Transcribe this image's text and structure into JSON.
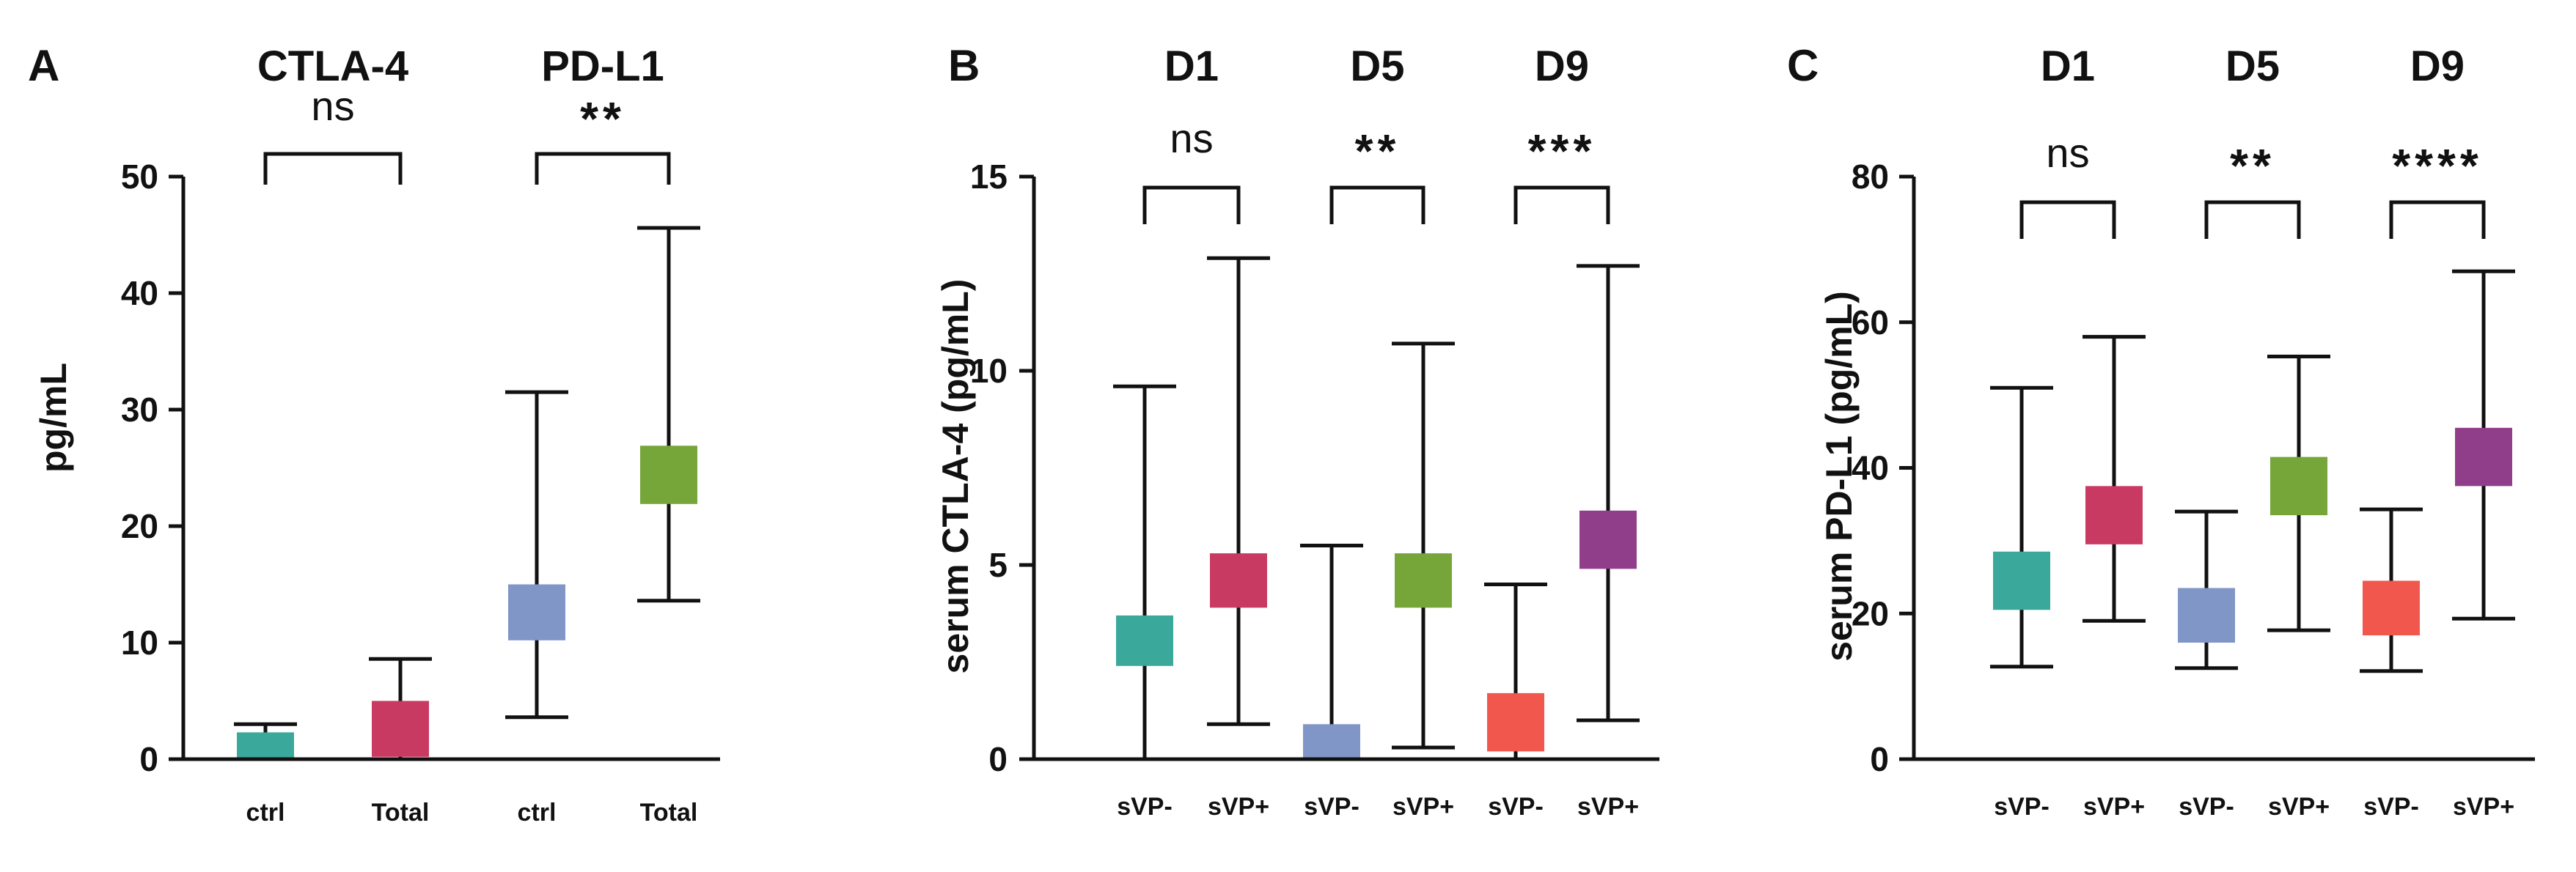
{
  "chart_data": [
    {
      "panel": "A",
      "type": "box",
      "ylabel": "pg/mL",
      "ylim": [
        0,
        50
      ],
      "yticks": [
        0,
        10,
        20,
        30,
        40,
        50
      ],
      "groups": [
        {
          "label": "CTLA-4",
          "significance": "ns",
          "items": [
            0,
            1
          ]
        },
        {
          "label": "PD-L1",
          "significance": "**",
          "items": [
            2,
            3
          ]
        }
      ],
      "categories": [
        "ctrl",
        "Total",
        "ctrl",
        "Total"
      ],
      "boxes": [
        {
          "category": "ctrl",
          "group": "CTLA-4",
          "min": 0,
          "q1": 0,
          "q3": 2.3,
          "max": 3.0,
          "color": "#3aa89a"
        },
        {
          "category": "Total",
          "group": "CTLA-4",
          "min": 0,
          "q1": 0.2,
          "q3": 5.0,
          "max": 8.6,
          "color": "#c93a62"
        },
        {
          "category": "ctrl",
          "group": "PD-L1",
          "min": 3.6,
          "q1": 10.2,
          "q3": 15.0,
          "max": 31.5,
          "color": "#7f96c6"
        },
        {
          "category": "Total",
          "group": "PD-L1",
          "min": 13.6,
          "q1": 21.9,
          "q3": 26.9,
          "max": 45.6,
          "color": "#76a53a"
        }
      ]
    },
    {
      "panel": "B",
      "type": "box",
      "ylabel": "serum CTLA-4 (pg/mL)",
      "ylim": [
        0,
        15
      ],
      "yticks": [
        0,
        5,
        10,
        15
      ],
      "groups": [
        {
          "label": "D1",
          "significance": "ns",
          "items": [
            0,
            1
          ]
        },
        {
          "label": "D5",
          "significance": "**",
          "items": [
            2,
            3
          ]
        },
        {
          "label": "D9",
          "significance": "***",
          "items": [
            4,
            5
          ]
        }
      ],
      "categories": [
        "sVP-",
        "sVP+",
        "sVP-",
        "sVP+",
        "sVP-",
        "sVP+"
      ],
      "boxes": [
        {
          "category": "sVP-",
          "group": "D1",
          "min": 0,
          "q1": 2.4,
          "q3": 3.7,
          "max": 9.6,
          "color": "#3aa89a"
        },
        {
          "category": "sVP+",
          "group": "D1",
          "min": 0.9,
          "q1": 3.9,
          "q3": 5.3,
          "max": 12.9,
          "color": "#c93a62"
        },
        {
          "category": "sVP-",
          "group": "D5",
          "min": 0,
          "q1": 0,
          "q3": 0.9,
          "max": 5.5,
          "color": "#7f96c6"
        },
        {
          "category": "sVP+",
          "group": "D5",
          "min": 0.3,
          "q1": 3.9,
          "q3": 5.3,
          "max": 10.7,
          "color": "#76a53a"
        },
        {
          "category": "sVP-",
          "group": "D9",
          "min": 0,
          "q1": 0.2,
          "q3": 1.7,
          "max": 4.5,
          "color": "#f2574e"
        },
        {
          "category": "sVP+",
          "group": "D9",
          "min": 1.0,
          "q1": 4.9,
          "q3": 6.4,
          "max": 12.7,
          "color": "#913e8a"
        }
      ]
    },
    {
      "panel": "C",
      "type": "box",
      "ylabel": "serum PD-L1 (pg/mL)",
      "ylim": [
        0,
        80
      ],
      "yticks": [
        0,
        20,
        40,
        60,
        80
      ],
      "groups": [
        {
          "label": "D1",
          "significance": "ns",
          "items": [
            0,
            1
          ]
        },
        {
          "label": "D5",
          "significance": "**",
          "items": [
            2,
            3
          ]
        },
        {
          "label": "D9",
          "significance": "****",
          "items": [
            4,
            5
          ]
        }
      ],
      "categories": [
        "sVP-",
        "sVP+",
        "sVP-",
        "sVP+",
        "sVP-",
        "sVP+"
      ],
      "boxes": [
        {
          "category": "sVP-",
          "group": "D1",
          "min": 12.7,
          "q1": 20.5,
          "q3": 28.5,
          "max": 51.0,
          "color": "#3aa89a"
        },
        {
          "category": "sVP+",
          "group": "D1",
          "min": 19.0,
          "q1": 29.5,
          "q3": 37.5,
          "max": 58.0,
          "color": "#c93a62"
        },
        {
          "category": "sVP-",
          "group": "D5",
          "min": 12.5,
          "q1": 16.0,
          "q3": 23.5,
          "max": 34.0,
          "color": "#7f96c6"
        },
        {
          "category": "sVP+",
          "group": "D5",
          "min": 17.7,
          "q1": 33.5,
          "q3": 41.5,
          "max": 55.3,
          "color": "#76a53a"
        },
        {
          "category": "sVP-",
          "group": "D9",
          "min": 12.1,
          "q1": 17.0,
          "q3": 24.5,
          "max": 34.3,
          "color": "#f2574e"
        },
        {
          "category": "sVP+",
          "group": "D9",
          "min": 19.3,
          "q1": 37.5,
          "q3": 45.5,
          "max": 67.0,
          "color": "#913e8a"
        }
      ]
    }
  ]
}
